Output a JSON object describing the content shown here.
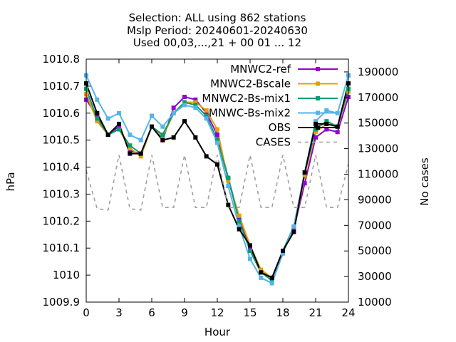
{
  "chart_data": {
    "type": "line",
    "title_lines": [
      "Selection: ALL using   862 stations",
      "Mslp   Period: 20240601-20240630",
      "Used 00,03,...,21 + 00 01 ... 12"
    ],
    "xlabel": "Hour",
    "ylabel": "hPa",
    "y2label": "No cases",
    "xlim": [
      0,
      24
    ],
    "ylim": [
      1009.9,
      1010.8
    ],
    "y2lim": [
      10000,
      200000
    ],
    "xticks": [
      0,
      3,
      6,
      9,
      12,
      15,
      18,
      21,
      24
    ],
    "yticks": [
      1009.9,
      1010,
      1010.1,
      1010.2,
      1010.3,
      1010.4,
      1010.5,
      1010.6,
      1010.7,
      1010.8
    ],
    "ytick_labels": [
      "1009.9",
      "1010",
      "1010.1",
      "1010.2",
      "1010.3",
      "1010.4",
      "1010.5",
      "1010.6",
      "1010.7",
      "1010.8"
    ],
    "y2ticks": [
      10000,
      30000,
      50000,
      70000,
      90000,
      110000,
      130000,
      150000,
      170000,
      190000
    ],
    "grid": false,
    "legend_position": "top-right",
    "x": [
      0,
      1,
      2,
      3,
      4,
      5,
      6,
      7,
      8,
      9,
      10,
      11,
      12,
      13,
      14,
      15,
      16,
      17,
      18,
      19,
      20,
      21,
      22,
      23,
      24
    ],
    "series": [
      {
        "name": "MNWC2-ref",
        "color": "#9400d3",
        "marker": "square",
        "values": [
          1010.65,
          1010.59,
          1010.52,
          1010.55,
          1010.46,
          1010.45,
          1010.55,
          1010.5,
          1010.62,
          1010.66,
          1010.65,
          1010.6,
          1010.52,
          1010.36,
          1010.21,
          1010.1,
          1010.01,
          1009.99,
          1010.09,
          1010.17,
          1010.34,
          1010.51,
          1010.54,
          1010.53,
          1010.66
        ]
      },
      {
        "name": "MNWC2-Bscale",
        "color": "#e69f00",
        "marker": "square",
        "values": [
          1010.67,
          1010.57,
          1010.52,
          1010.54,
          1010.47,
          1010.44,
          1010.55,
          1010.51,
          1010.6,
          1010.64,
          1010.64,
          1010.61,
          1010.54,
          1010.35,
          1010.22,
          1010.11,
          1010.02,
          1009.99,
          1010.09,
          1010.16,
          1010.37,
          1010.53,
          1010.56,
          1010.55,
          1010.68
        ]
      },
      {
        "name": "MNWC2-Bs-mix1",
        "color": "#009e73",
        "marker": "square",
        "values": [
          1010.69,
          1010.58,
          1010.52,
          1010.54,
          1010.48,
          1010.45,
          1010.55,
          1010.52,
          1010.6,
          1010.64,
          1010.63,
          1010.59,
          1010.5,
          1010.36,
          1010.2,
          1010.09,
          1010.01,
          1009.98,
          1010.09,
          1010.18,
          1010.38,
          1010.54,
          1010.57,
          1010.55,
          1010.69
        ]
      },
      {
        "name": "MNWC-Bs-mix2",
        "color": "#56b4e9",
        "marker": "square",
        "values": [
          1010.74,
          1010.65,
          1010.58,
          1010.6,
          1010.52,
          1010.5,
          1010.59,
          1010.55,
          1010.6,
          1010.63,
          1010.62,
          1010.58,
          1010.49,
          1010.33,
          1010.18,
          1010.06,
          1009.99,
          1009.97,
          1010.08,
          1010.18,
          1010.38,
          1010.57,
          1010.61,
          1010.6,
          1010.74
        ]
      },
      {
        "name": "OBS",
        "color": "#000000",
        "marker": "square",
        "values": [
          1010.71,
          1010.6,
          1010.52,
          1010.56,
          1010.45,
          1010.45,
          1010.55,
          1010.5,
          1010.51,
          1010.57,
          1010.51,
          1010.44,
          1010.41,
          1010.26,
          1010.17,
          1010.11,
          1010.01,
          1009.99,
          1010.09,
          1010.16,
          1010.38,
          1010.56,
          1010.56,
          1010.55,
          1010.71
        ]
      },
      {
        "name": "CASES",
        "color": "#a0a0a0",
        "marker": "none",
        "dashed": true,
        "axis": "y2",
        "values": [
          113000,
          83000,
          82000,
          125000,
          83000,
          82000,
          125000,
          84000,
          84000,
          125000,
          84000,
          84000,
          125000,
          84000,
          84000,
          125000,
          84000,
          84000,
          125000,
          84000,
          84000,
          125000,
          84000,
          84000,
          118000
        ]
      }
    ]
  }
}
